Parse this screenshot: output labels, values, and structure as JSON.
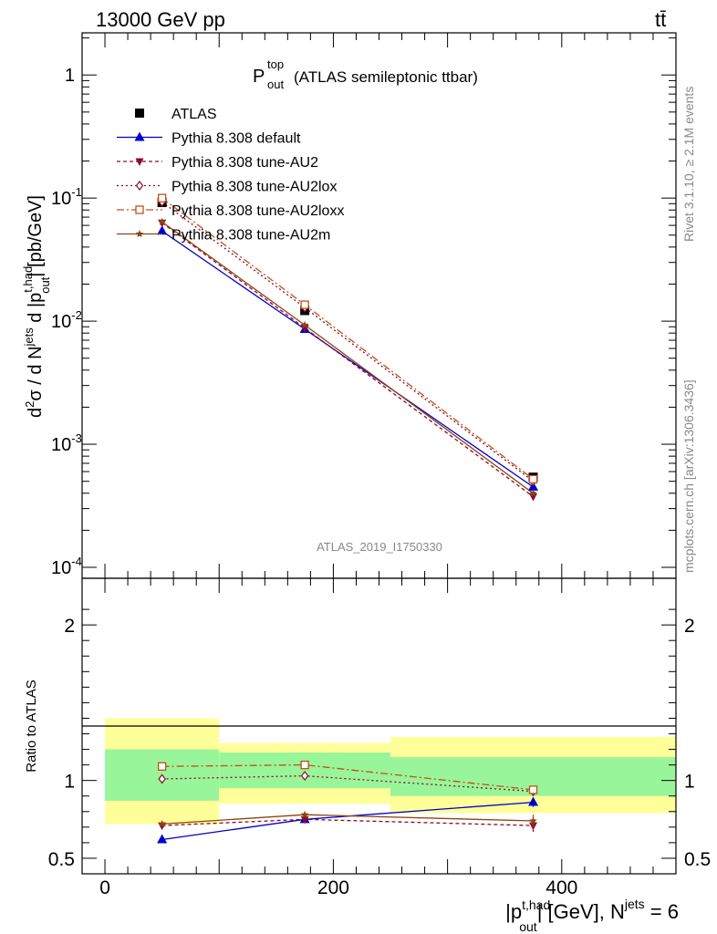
{
  "header": {
    "energy_label": "13000 GeV pp",
    "process_label": "tt̄"
  },
  "side_labels": {
    "rivet": "Rivet 3.1.10, ≥ 2.1M events",
    "mcplots": "mcplots.cern.ch [arXiv:1306.3436]"
  },
  "analysis_id": "ATLAS_2019_I1750330",
  "chart_data": [
    {
      "type": "line",
      "title": "P_out^top (ATLAS semileptonic ttbar)",
      "title_main": "P",
      "title_sup": "top",
      "title_sub": "out",
      "title_rest": "(ATLAS semileptonic ttbar)",
      "ylabel": "d²σ / d N^jets d |p_out^t,had| [pb/GeV]",
      "yscale": "log",
      "ylim": [
        0.0001,
        2.2
      ],
      "xlim": [
        -20,
        500
      ],
      "y_ticks": [
        {
          "value": 1,
          "label": "1"
        },
        {
          "value": 0.1,
          "label": "10",
          "exp": "-1"
        },
        {
          "value": 0.01,
          "label": "10",
          "exp": "-2"
        },
        {
          "value": 0.001,
          "label": "10",
          "exp": "-3"
        },
        {
          "value": 0.0001,
          "label": "10",
          "exp": "-4"
        }
      ],
      "legend_position": "top-left",
      "series": [
        {
          "name": "ATLAS",
          "color": "#000000",
          "marker": "square-filled",
          "dash": "none",
          "x": [
            50,
            175,
            375
          ],
          "y": [
            0.092,
            0.0122,
            0.00054
          ]
        },
        {
          "name": "Pythia 8.308 default",
          "color": "#0000cc",
          "marker": "triangle-up-filled",
          "dash": "solid",
          "x": [
            50,
            175,
            375
          ],
          "y": [
            0.054,
            0.0086,
            0.00045
          ]
        },
        {
          "name": "Pythia 8.308 tune-AU2",
          "color": "#8b0a2a",
          "marker": "triangle-down-filled",
          "dash": "4,3",
          "x": [
            50,
            175,
            375
          ],
          "y": [
            0.063,
            0.0088,
            0.000375
          ]
        },
        {
          "name": "Pythia 8.308 tune-AU2lox",
          "color": "#8b0a2a",
          "marker": "diamond-open",
          "dash": "2,3",
          "x": [
            50,
            175,
            375
          ],
          "y": [
            0.093,
            0.0129,
            0.0005
          ]
        },
        {
          "name": "Pythia 8.308 tune-AU2loxx",
          "color": "#c0501a",
          "marker": "square-open",
          "dash": "8,3,2,3",
          "x": [
            50,
            175,
            375
          ],
          "y": [
            0.1,
            0.0136,
            0.00052
          ]
        },
        {
          "name": "Pythia 8.308 tune-AU2m",
          "color": "#8b4513",
          "marker": "star",
          "dash": "solid",
          "x": [
            50,
            175,
            375
          ],
          "y": [
            0.064,
            0.0093,
            0.0004
          ]
        }
      ]
    },
    {
      "type": "line",
      "ylabel": "Ratio to ATLAS",
      "xlabel": "|p_out^t,had| [GeV], N^jets = 6",
      "ylim": [
        0.4,
        2.3
      ],
      "xlim": [
        -20,
        500
      ],
      "x_ticks": [
        0,
        200,
        400
      ],
      "y_ticks": [
        0.5,
        1,
        2
      ],
      "bands": [
        {
          "x0": 0,
          "x1": 100,
          "yellow": [
            0.72,
            1.4
          ],
          "green": [
            0.87,
            1.2
          ]
        },
        {
          "x0": 100,
          "x1": 250,
          "yellow": [
            0.85,
            1.24
          ],
          "green": [
            0.95,
            1.18
          ]
        },
        {
          "x0": 250,
          "x1": 500,
          "yellow": [
            0.79,
            1.28
          ],
          "green": [
            0.9,
            1.15
          ]
        }
      ],
      "series": [
        {
          "name": "Pythia 8.308 default",
          "x": [
            50,
            175,
            375
          ],
          "y": [
            0.62,
            0.75,
            0.86
          ],
          "err": [
            0,
            0,
            0.03
          ]
        },
        {
          "name": "Pythia 8.308 tune-AU2",
          "x": [
            50,
            175,
            375
          ],
          "y": [
            0.71,
            0.75,
            0.71
          ],
          "err": [
            0,
            0,
            0.04
          ]
        },
        {
          "name": "Pythia 8.308 tune-AU2lox",
          "x": [
            50,
            175,
            375
          ],
          "y": [
            1.01,
            1.03,
            0.93
          ],
          "err": [
            0,
            0,
            0.02
          ]
        },
        {
          "name": "Pythia 8.308 tune-AU2loxx",
          "x": [
            50,
            175,
            375
          ],
          "y": [
            1.09,
            1.1,
            0.94
          ],
          "err": [
            0,
            0,
            0.02
          ]
        },
        {
          "name": "Pythia 8.308 tune-AU2m",
          "x": [
            50,
            175,
            375
          ],
          "y": [
            0.72,
            0.78,
            0.74
          ],
          "err": [
            0,
            0,
            0.04
          ]
        }
      ]
    }
  ]
}
